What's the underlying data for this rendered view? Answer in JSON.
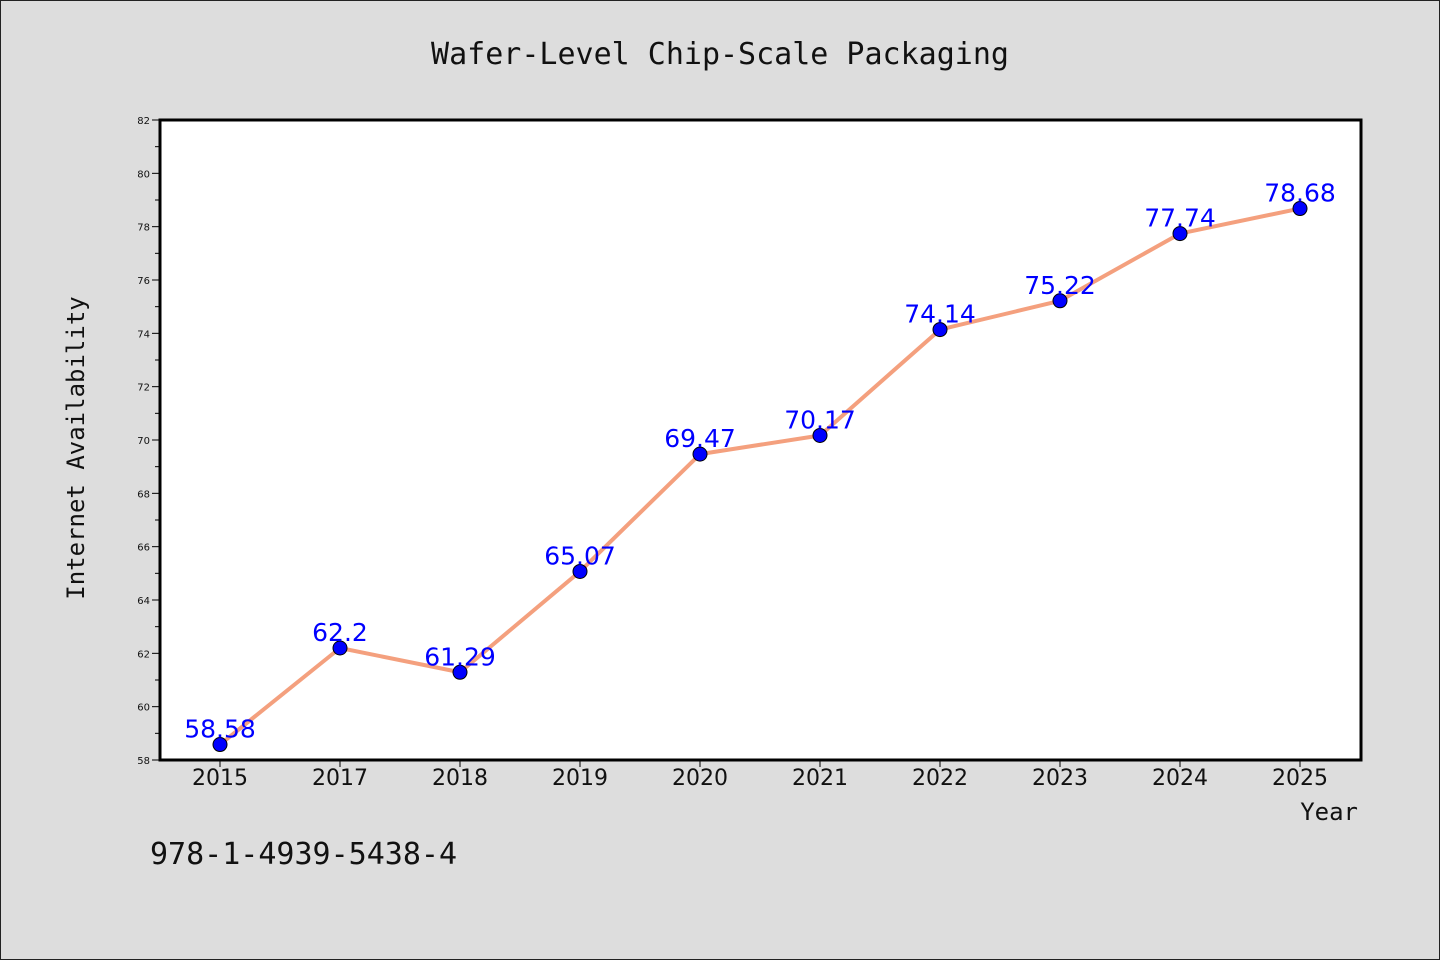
{
  "colors": {
    "line": "#f4a07e",
    "marker": "#0000ff",
    "label": "#0000ff",
    "frame": "#000000",
    "plot_bg": "#ffffff"
  },
  "isbn": "978-1-4939-5438-4",
  "chart_data": {
    "type": "line",
    "title": "Wafer-Level Chip-Scale Packaging",
    "xlabel": "Year",
    "ylabel": "Internet Availability",
    "categories": [
      "2015",
      "2017",
      "2018",
      "2019",
      "2020",
      "2021",
      "2022",
      "2023",
      "2024",
      "2025"
    ],
    "series": [
      {
        "values": [
          58.58,
          62.2,
          61.29,
          65.07,
          69.47,
          70.17,
          74.14,
          75.22,
          77.74,
          78.68
        ],
        "labels": [
          "58.58",
          "62.2",
          "61.29",
          "65.07",
          "69.47",
          "70.17",
          "74.14",
          "75.22",
          "77.74",
          "78.68"
        ]
      }
    ],
    "ylim": [
      58,
      82
    ],
    "yticks": [
      58,
      60,
      62,
      64,
      66,
      68,
      70,
      72,
      74,
      76,
      78,
      80,
      82
    ],
    "grid": false,
    "legend": "none"
  }
}
